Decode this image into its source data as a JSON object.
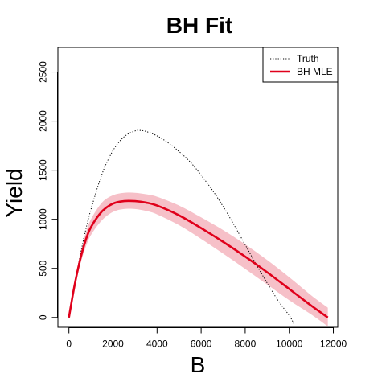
{
  "chart_data": {
    "type": "line",
    "title": "BH Fit",
    "xlabel": "B",
    "ylabel": "Yield",
    "xlim": [
      -500,
      12200
    ],
    "ylim": [
      -100,
      2750
    ],
    "x_ticks": [
      0,
      2000,
      4000,
      6000,
      8000,
      10000,
      12000
    ],
    "y_ticks": [
      0,
      500,
      1000,
      1500,
      2000,
      2500
    ],
    "x_tick_labels": [
      "0",
      "2000",
      "4000",
      "6000",
      "8000",
      "10000",
      "12000"
    ],
    "y_tick_labels": [
      "0",
      "500",
      "1000",
      "1500",
      "2000",
      "2500"
    ],
    "grid": false,
    "legend": {
      "position": "top-right",
      "entries": [
        {
          "label": "Truth",
          "style": "dotted",
          "color": "#000000"
        },
        {
          "label": "BH MLE",
          "style": "solid",
          "color": "#e0001b"
        }
      ]
    },
    "series": [
      {
        "name": "Truth",
        "style": "dotted",
        "color": "#000000",
        "x": [
          0,
          250,
          500,
          750,
          1000,
          1500,
          2000,
          2500,
          3000,
          3250,
          3500,
          4000,
          4500,
          5000,
          5500,
          6000,
          6500,
          7000,
          7500,
          8000,
          8500,
          9000,
          9500,
          10000,
          10200
        ],
        "y": [
          0,
          320,
          620,
          880,
          1100,
          1460,
          1700,
          1840,
          1900,
          1905,
          1895,
          1850,
          1780,
          1690,
          1585,
          1450,
          1300,
          1130,
          940,
          740,
          540,
          350,
          170,
          20,
          -60
        ]
      },
      {
        "name": "BH MLE",
        "style": "solid",
        "color": "#e0001b",
        "x": [
          0,
          250,
          500,
          750,
          1000,
          1500,
          2000,
          2500,
          3000,
          3500,
          4000,
          5000,
          6000,
          7000,
          8000,
          9000,
          10000,
          11000,
          11750
        ],
        "y": [
          0,
          320,
          580,
          780,
          920,
          1080,
          1160,
          1185,
          1185,
          1170,
          1140,
          1040,
          910,
          770,
          620,
          460,
          290,
          120,
          0
        ],
        "band_lower": [
          0,
          290,
          530,
          710,
          840,
          990,
          1075,
          1105,
          1105,
          1085,
          1050,
          940,
          800,
          650,
          495,
          335,
          175,
          30,
          -90
        ],
        "band_upper": [
          0,
          350,
          630,
          850,
          1000,
          1170,
          1245,
          1270,
          1270,
          1255,
          1230,
          1140,
          1020,
          890,
          745,
          585,
          410,
          225,
          100
        ],
        "band_color": "#f6c0c8"
      }
    ]
  }
}
